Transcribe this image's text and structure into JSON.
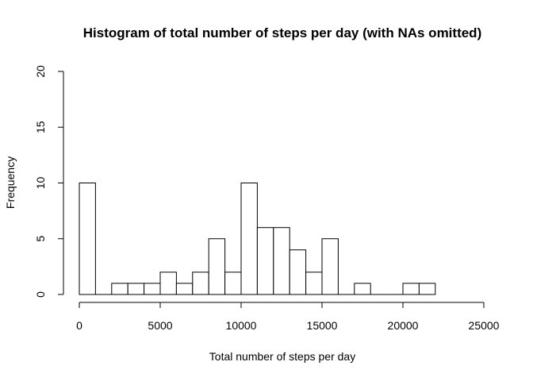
{
  "chart_data": {
    "type": "bar",
    "title": "Histogram of total number of steps per day (with NAs omitted)",
    "xlabel": "Total number of steps per day",
    "ylabel": "Frequency",
    "bin_width": 1000,
    "bins": [
      {
        "x0": 0,
        "x1": 1000,
        "count": 10
      },
      {
        "x0": 1000,
        "x1": 2000,
        "count": 0
      },
      {
        "x0": 2000,
        "x1": 3000,
        "count": 1
      },
      {
        "x0": 3000,
        "x1": 4000,
        "count": 1
      },
      {
        "x0": 4000,
        "x1": 5000,
        "count": 1
      },
      {
        "x0": 5000,
        "x1": 6000,
        "count": 2
      },
      {
        "x0": 6000,
        "x1": 7000,
        "count": 1
      },
      {
        "x0": 7000,
        "x1": 8000,
        "count": 2
      },
      {
        "x0": 8000,
        "x1": 9000,
        "count": 5
      },
      {
        "x0": 9000,
        "x1": 10000,
        "count": 2
      },
      {
        "x0": 10000,
        "x1": 11000,
        "count": 10
      },
      {
        "x0": 11000,
        "x1": 12000,
        "count": 6
      },
      {
        "x0": 12000,
        "x1": 13000,
        "count": 6
      },
      {
        "x0": 13000,
        "x1": 14000,
        "count": 4
      },
      {
        "x0": 14000,
        "x1": 15000,
        "count": 2
      },
      {
        "x0": 15000,
        "x1": 16000,
        "count": 5
      },
      {
        "x0": 16000,
        "x1": 17000,
        "count": 0
      },
      {
        "x0": 17000,
        "x1": 18000,
        "count": 1
      },
      {
        "x0": 18000,
        "x1": 19000,
        "count": 0
      },
      {
        "x0": 19000,
        "x1": 20000,
        "count": 0
      },
      {
        "x0": 20000,
        "x1": 21000,
        "count": 1
      },
      {
        "x0": 21000,
        "x1": 22000,
        "count": 1
      }
    ],
    "xlim": [
      0,
      25000
    ],
    "ylim": [
      0,
      20
    ],
    "xticks": [
      0,
      5000,
      10000,
      15000,
      20000,
      25000
    ],
    "yticks": [
      0,
      5,
      10,
      15,
      20
    ],
    "grid": false,
    "legend": "none",
    "bar_fill": "#ffffff",
    "bar_stroke": "#000000"
  }
}
